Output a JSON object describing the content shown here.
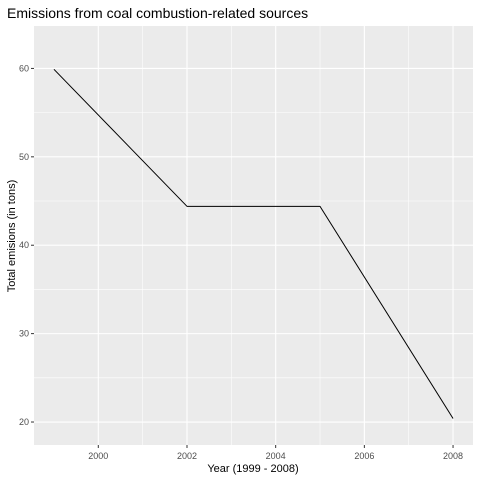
{
  "chart_data": {
    "type": "line",
    "title": "Emissions from coal combustion-related sources",
    "xlabel": "Year (1999 - 2008)",
    "ylabel": "Total emisions (in tons)",
    "x": [
      1999,
      2002,
      2005,
      2008
    ],
    "y": [
      59.9,
      44.4,
      44.4,
      20.4
    ],
    "xlim": [
      1998.55,
      2008.45
    ],
    "ylim": [
      17.4,
      64.8
    ],
    "x_ticks": [
      2000,
      2002,
      2004,
      2006,
      2008
    ],
    "x_tick_labels": [
      "2000",
      "2002",
      "2004",
      "2006",
      "2008"
    ],
    "y_ticks": [
      20,
      30,
      40,
      50,
      60
    ],
    "y_tick_labels": [
      "20",
      "30",
      "40",
      "50",
      "60"
    ],
    "grid": true,
    "line_color": "#000000",
    "panel_background": "#ebebeb",
    "grid_color": "#ffffff"
  }
}
